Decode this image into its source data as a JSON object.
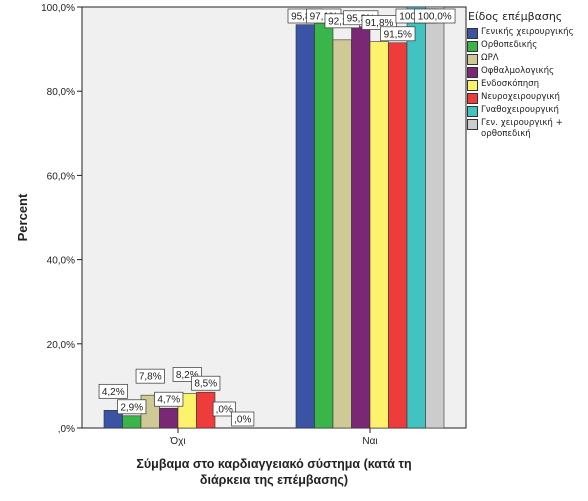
{
  "chart_data": {
    "type": "bar",
    "xlabel": "Σύμβαμα στο καρδιαγγειακό σύστημα (κατά τη διάρκεια της επέμβασης)",
    "xlabel_lines": [
      "Σύμβαμα στο καρδιαγγειακό σύστημα (κατά τη",
      "διάρκεια της επέμβασης)"
    ],
    "ylabel": "Percent",
    "ylim": [
      0,
      100
    ],
    "yticks": [
      ",0%",
      "20,0%",
      "40,0%",
      "60,0%",
      "80,0%",
      "100,0%"
    ],
    "categories": [
      "Όχι",
      "Ναι"
    ],
    "legend_title": "Είδος επέμβασης",
    "legend_position": "right",
    "grid": false,
    "series": [
      {
        "name": "Γενικής χειρουργικής",
        "color": "#3b53a4",
        "values": [
          4.2,
          95.8
        ],
        "labels": [
          "4,2%",
          "95,8%"
        ]
      },
      {
        "name": "Ορθοπεδικής",
        "color": "#3ab54a",
        "values": [
          2.9,
          97.1
        ],
        "labels": [
          "2,9%",
          "97,1%"
        ]
      },
      {
        "name": "ΩΡΛ",
        "color": "#cfca95",
        "values": [
          7.8,
          92.2
        ],
        "labels": [
          "7,8%",
          "92,2%"
        ]
      },
      {
        "name": "Οφθαλμολογικής",
        "color": "#7a2775",
        "values": [
          4.7,
          95.3
        ],
        "labels": [
          "4,7%",
          "95,3%"
        ]
      },
      {
        "name": "Ενδοσκόπηση",
        "color": "#fdf26b",
        "values": [
          8.2,
          91.8
        ],
        "labels": [
          "8,2%",
          "91,8%"
        ]
      },
      {
        "name": "Νευροχειρουργική",
        "color": "#ee3b3b",
        "values": [
          8.5,
          91.5
        ],
        "labels": [
          "8,5%",
          "91,5%"
        ]
      },
      {
        "name": "Γναθοχειρουργική",
        "color": "#41c3c2",
        "values": [
          0,
          100
        ],
        "labels": [
          ",0%",
          "100,0%"
        ]
      },
      {
        "name": "Γεν. χειρουργική + ορθοπεδική",
        "color": "#cccccc",
        "values": [
          0,
          100
        ],
        "labels": [
          ",0%",
          "100,0%"
        ]
      }
    ]
  }
}
